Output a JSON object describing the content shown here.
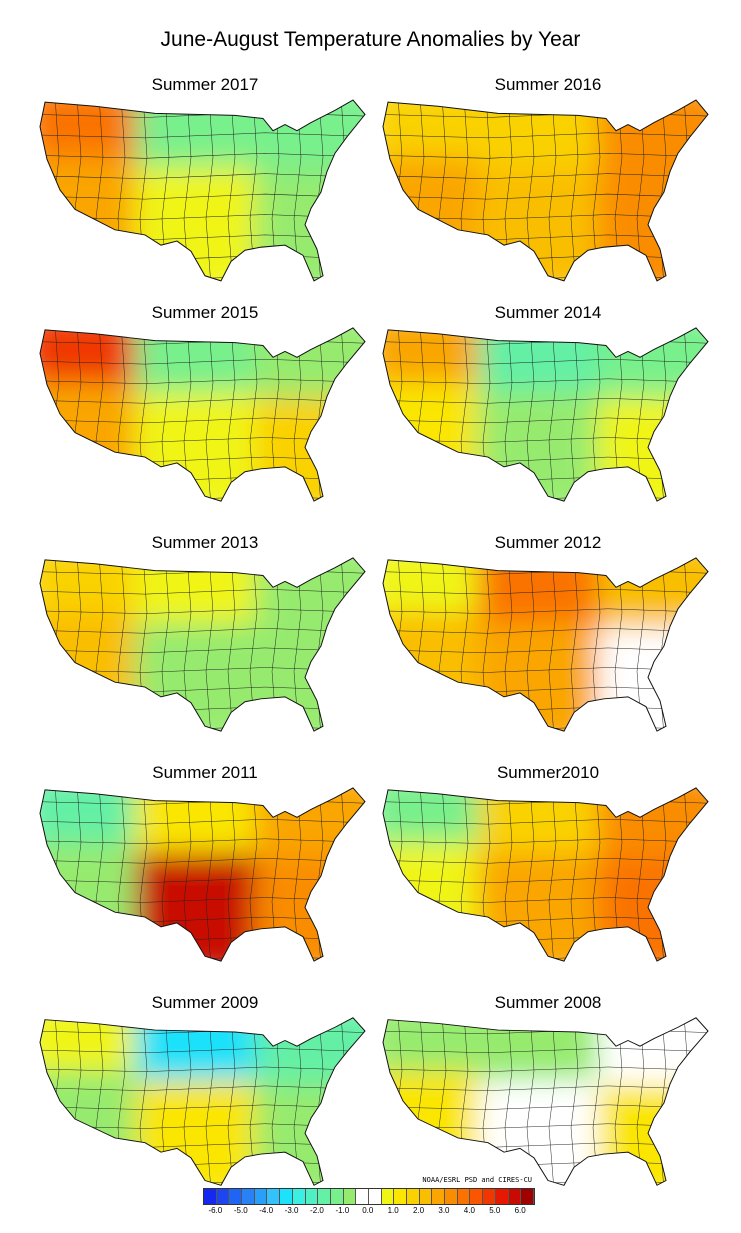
{
  "title": "June-August Temperature Anomalies by Year",
  "colorbar": {
    "credit": "NOAA/ESRL PSD and CIRES-CU",
    "tick_labels": [
      "-6.0",
      "-5.0",
      "-4.0",
      "-3.0",
      "-2.0",
      "-1.0",
      "0.0",
      "1.0",
      "2.0",
      "3.0",
      "4.0",
      "5.0",
      "6.0"
    ],
    "colors": [
      "#1428f0",
      "#1e46f0",
      "#1e64f5",
      "#2882f5",
      "#28a0fa",
      "#32c3fa",
      "#1ee1fa",
      "#3cf0e1",
      "#50f0c3",
      "#64f0a5",
      "#78f08c",
      "#96eb6e",
      "#ffffff",
      "#ffffff",
      "#f0f514",
      "#fae600",
      "#fad200",
      "#fabe00",
      "#faa500",
      "#fa8c00",
      "#fa7300",
      "#fa5500",
      "#f03700",
      "#e61900",
      "#c80a00",
      "#a00000"
    ]
  },
  "maps": [
    {
      "label": "Summer 2017",
      "regions": {
        "northwest": 3.5,
        "southwest": 2.5,
        "north_central": -1.5,
        "south_central": 0.5,
        "northeast": -1.5,
        "southeast": -1.0
      }
    },
    {
      "label": "Summer 2016",
      "regions": {
        "northwest": 1.5,
        "southwest": 2.5,
        "north_central": 1.5,
        "south_central": 2.0,
        "northeast": 3.0,
        "southeast": 3.0
      }
    },
    {
      "label": "Summer 2015",
      "regions": {
        "northwest": 4.5,
        "southwest": 2.5,
        "north_central": -1.5,
        "south_central": 0.5,
        "northeast": -1.0,
        "southeast": 1.5
      }
    },
    {
      "label": "Summer 2014",
      "regions": {
        "northwest": 2.5,
        "southwest": 1.0,
        "north_central": -2.0,
        "south_central": -1.0,
        "northeast": -1.5,
        "southeast": 0.5
      }
    },
    {
      "label": "Summer 2013",
      "regions": {
        "northwest": 1.5,
        "southwest": 2.0,
        "north_central": 0.5,
        "south_central": -1.0,
        "northeast": -1.0,
        "southeast": -1.0
      }
    },
    {
      "label": "Summer 2012",
      "regions": {
        "northwest": 0.5,
        "southwest": 2.0,
        "north_central": 3.5,
        "south_central": 2.5,
        "northeast": 2.0,
        "southeast": 0.0
      }
    },
    {
      "label": "Summer 2011",
      "regions": {
        "northwest": -2.0,
        "southwest": -1.0,
        "north_central": 1.0,
        "south_central": 5.5,
        "northeast": 2.5,
        "southeast": 3.0
      }
    },
    {
      "label": "Summer2010",
      "regions": {
        "northwest": -1.5,
        "southwest": 0.5,
        "north_central": 1.5,
        "south_central": 2.5,
        "northeast": 3.0,
        "southeast": 3.5
      }
    },
    {
      "label": "Summer 2009",
      "regions": {
        "northwest": 0.5,
        "southwest": -1.0,
        "north_central": -3.5,
        "south_central": 1.0,
        "northeast": -2.0,
        "southeast": -1.0
      }
    },
    {
      "label": "Summer 2008",
      "regions": {
        "northwest": -1.0,
        "southwest": 1.0,
        "north_central": -1.0,
        "south_central": 0.0,
        "northeast": 0.0,
        "southeast": 1.0
      }
    }
  ]
}
